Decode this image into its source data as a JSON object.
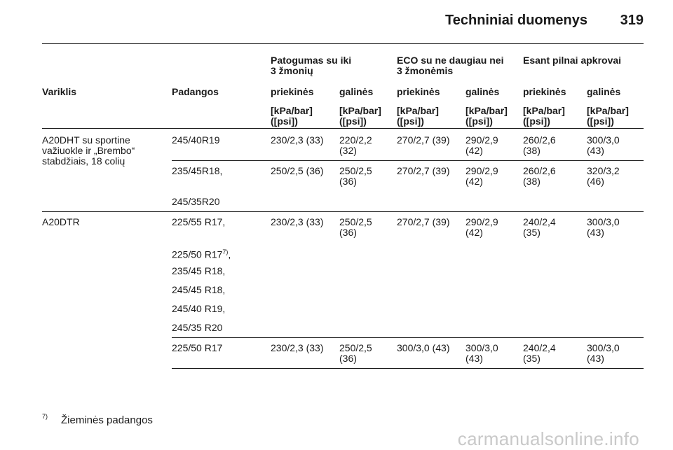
{
  "header": {
    "title": "Techniniai duomenys",
    "page_number": "319"
  },
  "table": {
    "group_headers": {
      "comfort": [
        "Patogumas su iki",
        "3 žmonių"
      ],
      "eco": [
        "ECO su ne daugiau nei",
        "3 žmonėmis"
      ],
      "full": "Esant pilnai apkrovai"
    },
    "col_headers": {
      "engine": "Variklis",
      "tires": "Padangos",
      "front": "priekinės",
      "rear": "galinės"
    },
    "unit": [
      "[kPa/bar]",
      "([psi])"
    ],
    "sections": [
      {
        "engine": [
          "A20DHT su sportine",
          "važiuokle ir „Brembo“",
          "stabdžiais, 18 colių"
        ],
        "rows": [
          {
            "tires": [
              "245/40R19"
            ],
            "values": [
              [
                "230/2,3 (33)"
              ],
              [
                "220/2,2",
                "(32)"
              ],
              [
                "270/2,7 (39)"
              ],
              [
                "290/2,9",
                "(42)"
              ],
              [
                "260/2,6",
                "(38)"
              ],
              [
                "300/3,0",
                "(43)"
              ]
            ]
          },
          {
            "tires": [
              "235/45R18,",
              "245/35R20"
            ],
            "values": [
              [
                "250/2,5 (36)"
              ],
              [
                "250/2,5",
                "(36)"
              ],
              [
                "270/2,7 (39)"
              ],
              [
                "290/2,9",
                "(42)"
              ],
              [
                "260/2,6",
                "(38)"
              ],
              [
                "320/3,2",
                "(46)"
              ]
            ]
          }
        ]
      },
      {
        "engine": [
          "A20DTR"
        ],
        "rows": [
          {
            "tires": [
              "225/55 R17,",
              "225/50 R17",
              "235/45 R18,",
              "245/45 R18,",
              "245/40 R19,",
              "245/35 R20"
            ],
            "tire_footnote": {
              "mark": "7)",
              "suffix": ","
            },
            "values": [
              [
                "230/2,3 (33)"
              ],
              [
                "250/2,5",
                "(36)"
              ],
              [
                "270/2,7 (39)"
              ],
              [
                "290/2,9",
                "(42)"
              ],
              [
                "240/2,4",
                "(35)"
              ],
              [
                "300/3,0",
                "(43)"
              ]
            ]
          },
          {
            "tires": [
              "225/50 R17"
            ],
            "values": [
              [
                "230/2,3 (33)"
              ],
              [
                "250/2,5",
                "(36)"
              ],
              [
                "300/3,0 (43)"
              ],
              [
                "300/3,0",
                "(43)"
              ],
              [
                "240/2,4",
                "(35)"
              ],
              [
                "300/3,0",
                "(43)"
              ]
            ]
          }
        ]
      }
    ]
  },
  "footnote": {
    "mark": "7)",
    "text": "Žieminės padangos"
  },
  "watermark": "carmanualsonline.info"
}
